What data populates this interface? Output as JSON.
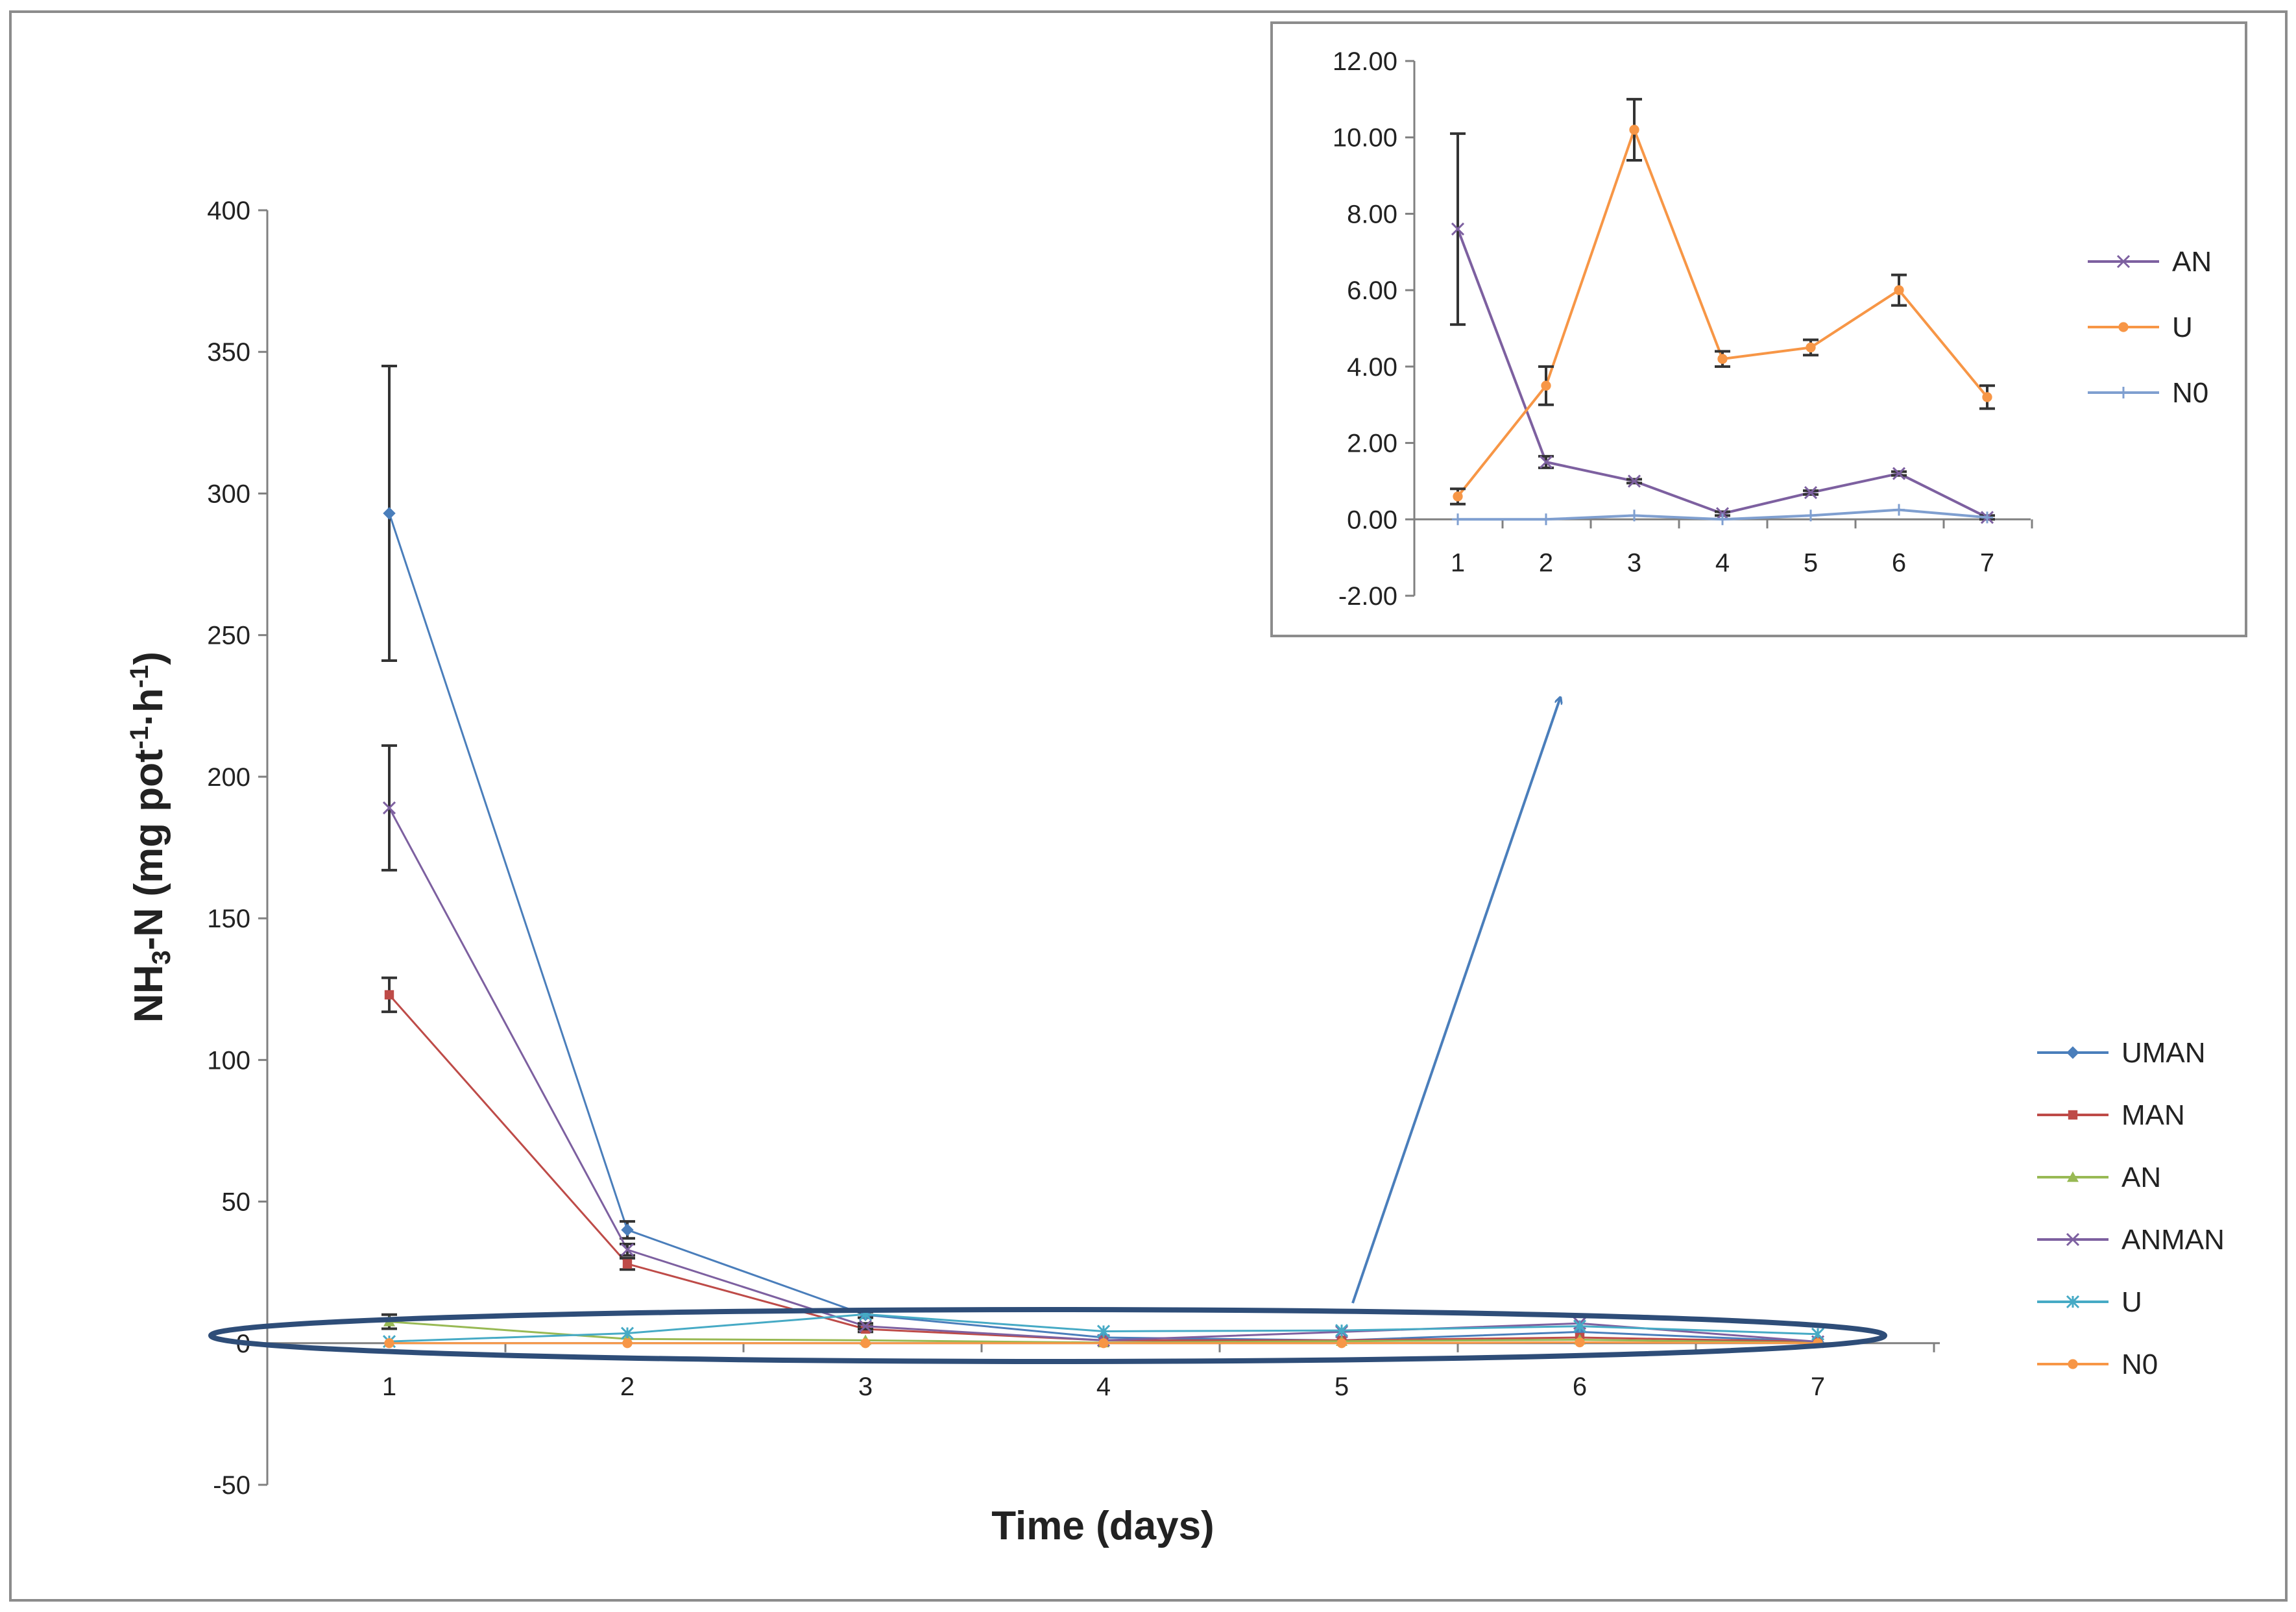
{
  "chart_data": [
    {
      "type": "line",
      "id": "main",
      "title": "",
      "xlabel": "Time (days)",
      "ylabel": {
        "base": "NH",
        "sub": "3",
        "mid": "-N  (mg pot",
        "sup1": "-1",
        "dot": "·h",
        "sup2": "-1",
        "end": ")"
      },
      "x": [
        1,
        2,
        3,
        4,
        5,
        6,
        7
      ],
      "x_tick_labels": [
        "1",
        "2",
        "3",
        "4",
        "5",
        "6",
        "7"
      ],
      "y_tick_labels": [
        "400",
        "350",
        "300",
        "250",
        "200",
        "150",
        "100",
        "50",
        "0",
        "-50"
      ],
      "y_ticks": [
        400,
        350,
        300,
        250,
        200,
        150,
        100,
        50,
        0,
        -50
      ],
      "ylim": [
        -50,
        400
      ],
      "legend_position": "right",
      "series": [
        {
          "name": "UMAN",
          "color": "#4a7ebb",
          "marker": "diamond",
          "values": [
            293,
            40,
            10,
            2,
            1,
            4,
            0.5
          ],
          "errors": [
            52,
            3,
            1,
            0,
            0,
            0,
            0
          ]
        },
        {
          "name": "MAN",
          "color": "#be4b48",
          "marker": "square",
          "values": [
            123,
            28,
            5,
            1,
            1,
            2,
            0.5
          ],
          "errors": [
            6,
            2,
            1,
            0,
            0,
            0,
            0
          ]
        },
        {
          "name": "AN",
          "color": "#98b954",
          "marker": "triangle",
          "values": [
            7.6,
            1.5,
            1.0,
            0.2,
            0.7,
            1.2,
            0.1
          ],
          "errors": [
            2.5,
            0,
            0,
            0,
            0,
            0,
            0
          ]
        },
        {
          "name": "ANMAN",
          "color": "#7d60a0",
          "marker": "x",
          "values": [
            189,
            33,
            6,
            1,
            4,
            7,
            0.5
          ],
          "errors": [
            22,
            2,
            1,
            0,
            0,
            0,
            0
          ]
        },
        {
          "name": "U",
          "color": "#46aac5",
          "marker": "star",
          "values": [
            0.6,
            3.5,
            10.2,
            4.2,
            4.5,
            6.0,
            3.2
          ],
          "errors": [
            0,
            0,
            0,
            0,
            0,
            0,
            0
          ]
        },
        {
          "name": "N0",
          "color": "#f79646",
          "marker": "circle",
          "values": [
            0,
            0,
            0,
            0,
            0,
            0.3,
            0
          ],
          "errors": [
            0,
            0,
            0,
            0,
            0,
            0,
            0
          ]
        }
      ],
      "annotations": [
        "ellipse highlighting low-value series",
        "arrow pointing to inset"
      ]
    },
    {
      "type": "line",
      "id": "inset",
      "title": "",
      "xlabel": "",
      "ylabel": "",
      "x": [
        1,
        2,
        3,
        4,
        5,
        6,
        7
      ],
      "x_tick_labels": [
        "1",
        "2",
        "3",
        "4",
        "5",
        "6",
        "7"
      ],
      "y_tick_labels": [
        "12.00",
        "10.00",
        "8.00",
        "6.00",
        "4.00",
        "2.00",
        "0.00",
        "-2.00"
      ],
      "y_ticks": [
        12,
        10,
        8,
        6,
        4,
        2,
        0,
        -2
      ],
      "ylim": [
        -2,
        12
      ],
      "legend_position": "right",
      "series": [
        {
          "name": "AN",
          "color": "#7d60a0",
          "marker": "x",
          "values": [
            7.6,
            1.5,
            1.0,
            0.15,
            0.7,
            1.2,
            0.05
          ],
          "errors": [
            2.5,
            0.15,
            0.05,
            0.05,
            0.05,
            0.05,
            0.05
          ]
        },
        {
          "name": "U",
          "color": "#f79646",
          "marker": "circle",
          "values": [
            0.6,
            3.5,
            10.2,
            4.2,
            4.5,
            6.0,
            3.2
          ],
          "errors": [
            0.2,
            0.5,
            0.8,
            0.2,
            0.2,
            0.4,
            0.3
          ]
        },
        {
          "name": "N0",
          "color": "#7f9fd0",
          "marker": "plus",
          "values": [
            0,
            0,
            0.1,
            0,
            0.1,
            0.25,
            0.05
          ],
          "errors": [
            0,
            0,
            0,
            0,
            0,
            0,
            0
          ]
        }
      ]
    }
  ]
}
